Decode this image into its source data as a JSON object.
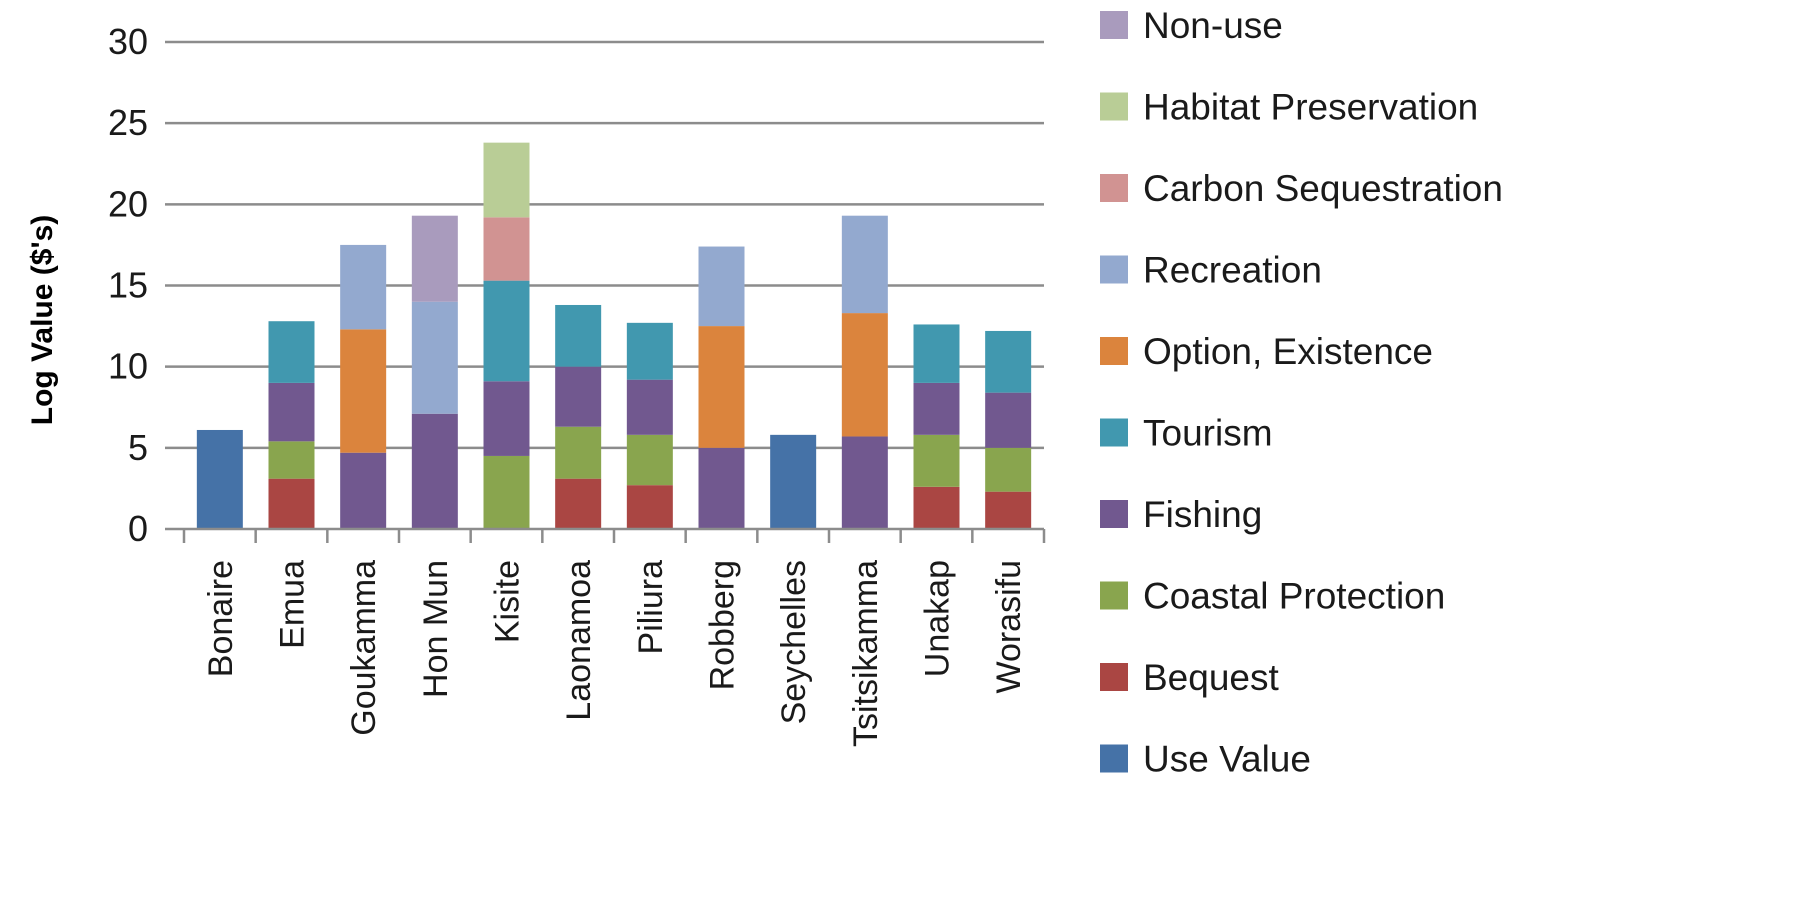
{
  "chart_data": {
    "type": "bar",
    "stacked": true,
    "title": "",
    "xlabel": "",
    "ylabel": "Log Value ($'s)",
    "ylim": [
      0,
      30
    ],
    "yticks": [
      0,
      5,
      10,
      15,
      20,
      25,
      30
    ],
    "grid": true,
    "legend_position": "right",
    "categories": [
      "Bonaire",
      "Emua",
      "Goukamma",
      "Hon Mun",
      "Kisite",
      "Laonamoa",
      "Piliura",
      "Robberg",
      "Seychelles",
      "Tsitsikamma",
      "Unakap",
      "Worasifu"
    ],
    "series": [
      {
        "name": "Use Value",
        "color": "#4572A7",
        "values": [
          6.1,
          0,
          0,
          0,
          0,
          0,
          0,
          0,
          5.8,
          0,
          0,
          0
        ]
      },
      {
        "name": "Bequest",
        "color": "#AA4643",
        "values": [
          0,
          3.1,
          0,
          0,
          0,
          3.1,
          2.7,
          0,
          0,
          0,
          2.6,
          2.3
        ]
      },
      {
        "name": "Coastal Protection",
        "color": "#89A54E",
        "values": [
          0,
          2.3,
          0,
          0,
          4.5,
          3.2,
          3.1,
          0,
          0,
          0,
          3.2,
          2.7
        ]
      },
      {
        "name": "Fishing",
        "color": "#71588F",
        "values": [
          0,
          3.6,
          4.7,
          7.1,
          4.6,
          3.7,
          3.4,
          5.0,
          0,
          5.7,
          3.2,
          3.4
        ]
      },
      {
        "name": "Tourism",
        "color": "#4198AF",
        "values": [
          0,
          3.8,
          0,
          0,
          6.2,
          3.8,
          3.5,
          0,
          0,
          0,
          3.6,
          3.8
        ]
      },
      {
        "name": "Option, Existence",
        "color": "#DB843D",
        "values": [
          0,
          0,
          7.6,
          0,
          0,
          0,
          0,
          7.5,
          0,
          7.6,
          0,
          0
        ]
      },
      {
        "name": "Recreation",
        "color": "#93A9CF",
        "values": [
          0,
          0,
          5.2,
          6.9,
          0,
          0,
          0,
          4.9,
          0,
          6.0,
          0,
          0
        ]
      },
      {
        "name": "Carbon Sequestration",
        "color": "#D19392",
        "values": [
          0,
          0,
          0,
          0,
          3.9,
          0,
          0,
          0,
          0,
          0,
          0,
          0
        ]
      },
      {
        "name": "Habitat Preservation",
        "color": "#B9CD96",
        "values": [
          0,
          0,
          0,
          0,
          4.6,
          0,
          0,
          0,
          0,
          0,
          0,
          0
        ]
      },
      {
        "name": "Non-use",
        "color": "#A99BBD",
        "values": [
          0,
          0,
          0,
          5.3,
          0,
          0,
          0,
          0,
          0,
          0,
          0,
          0
        ]
      }
    ]
  }
}
